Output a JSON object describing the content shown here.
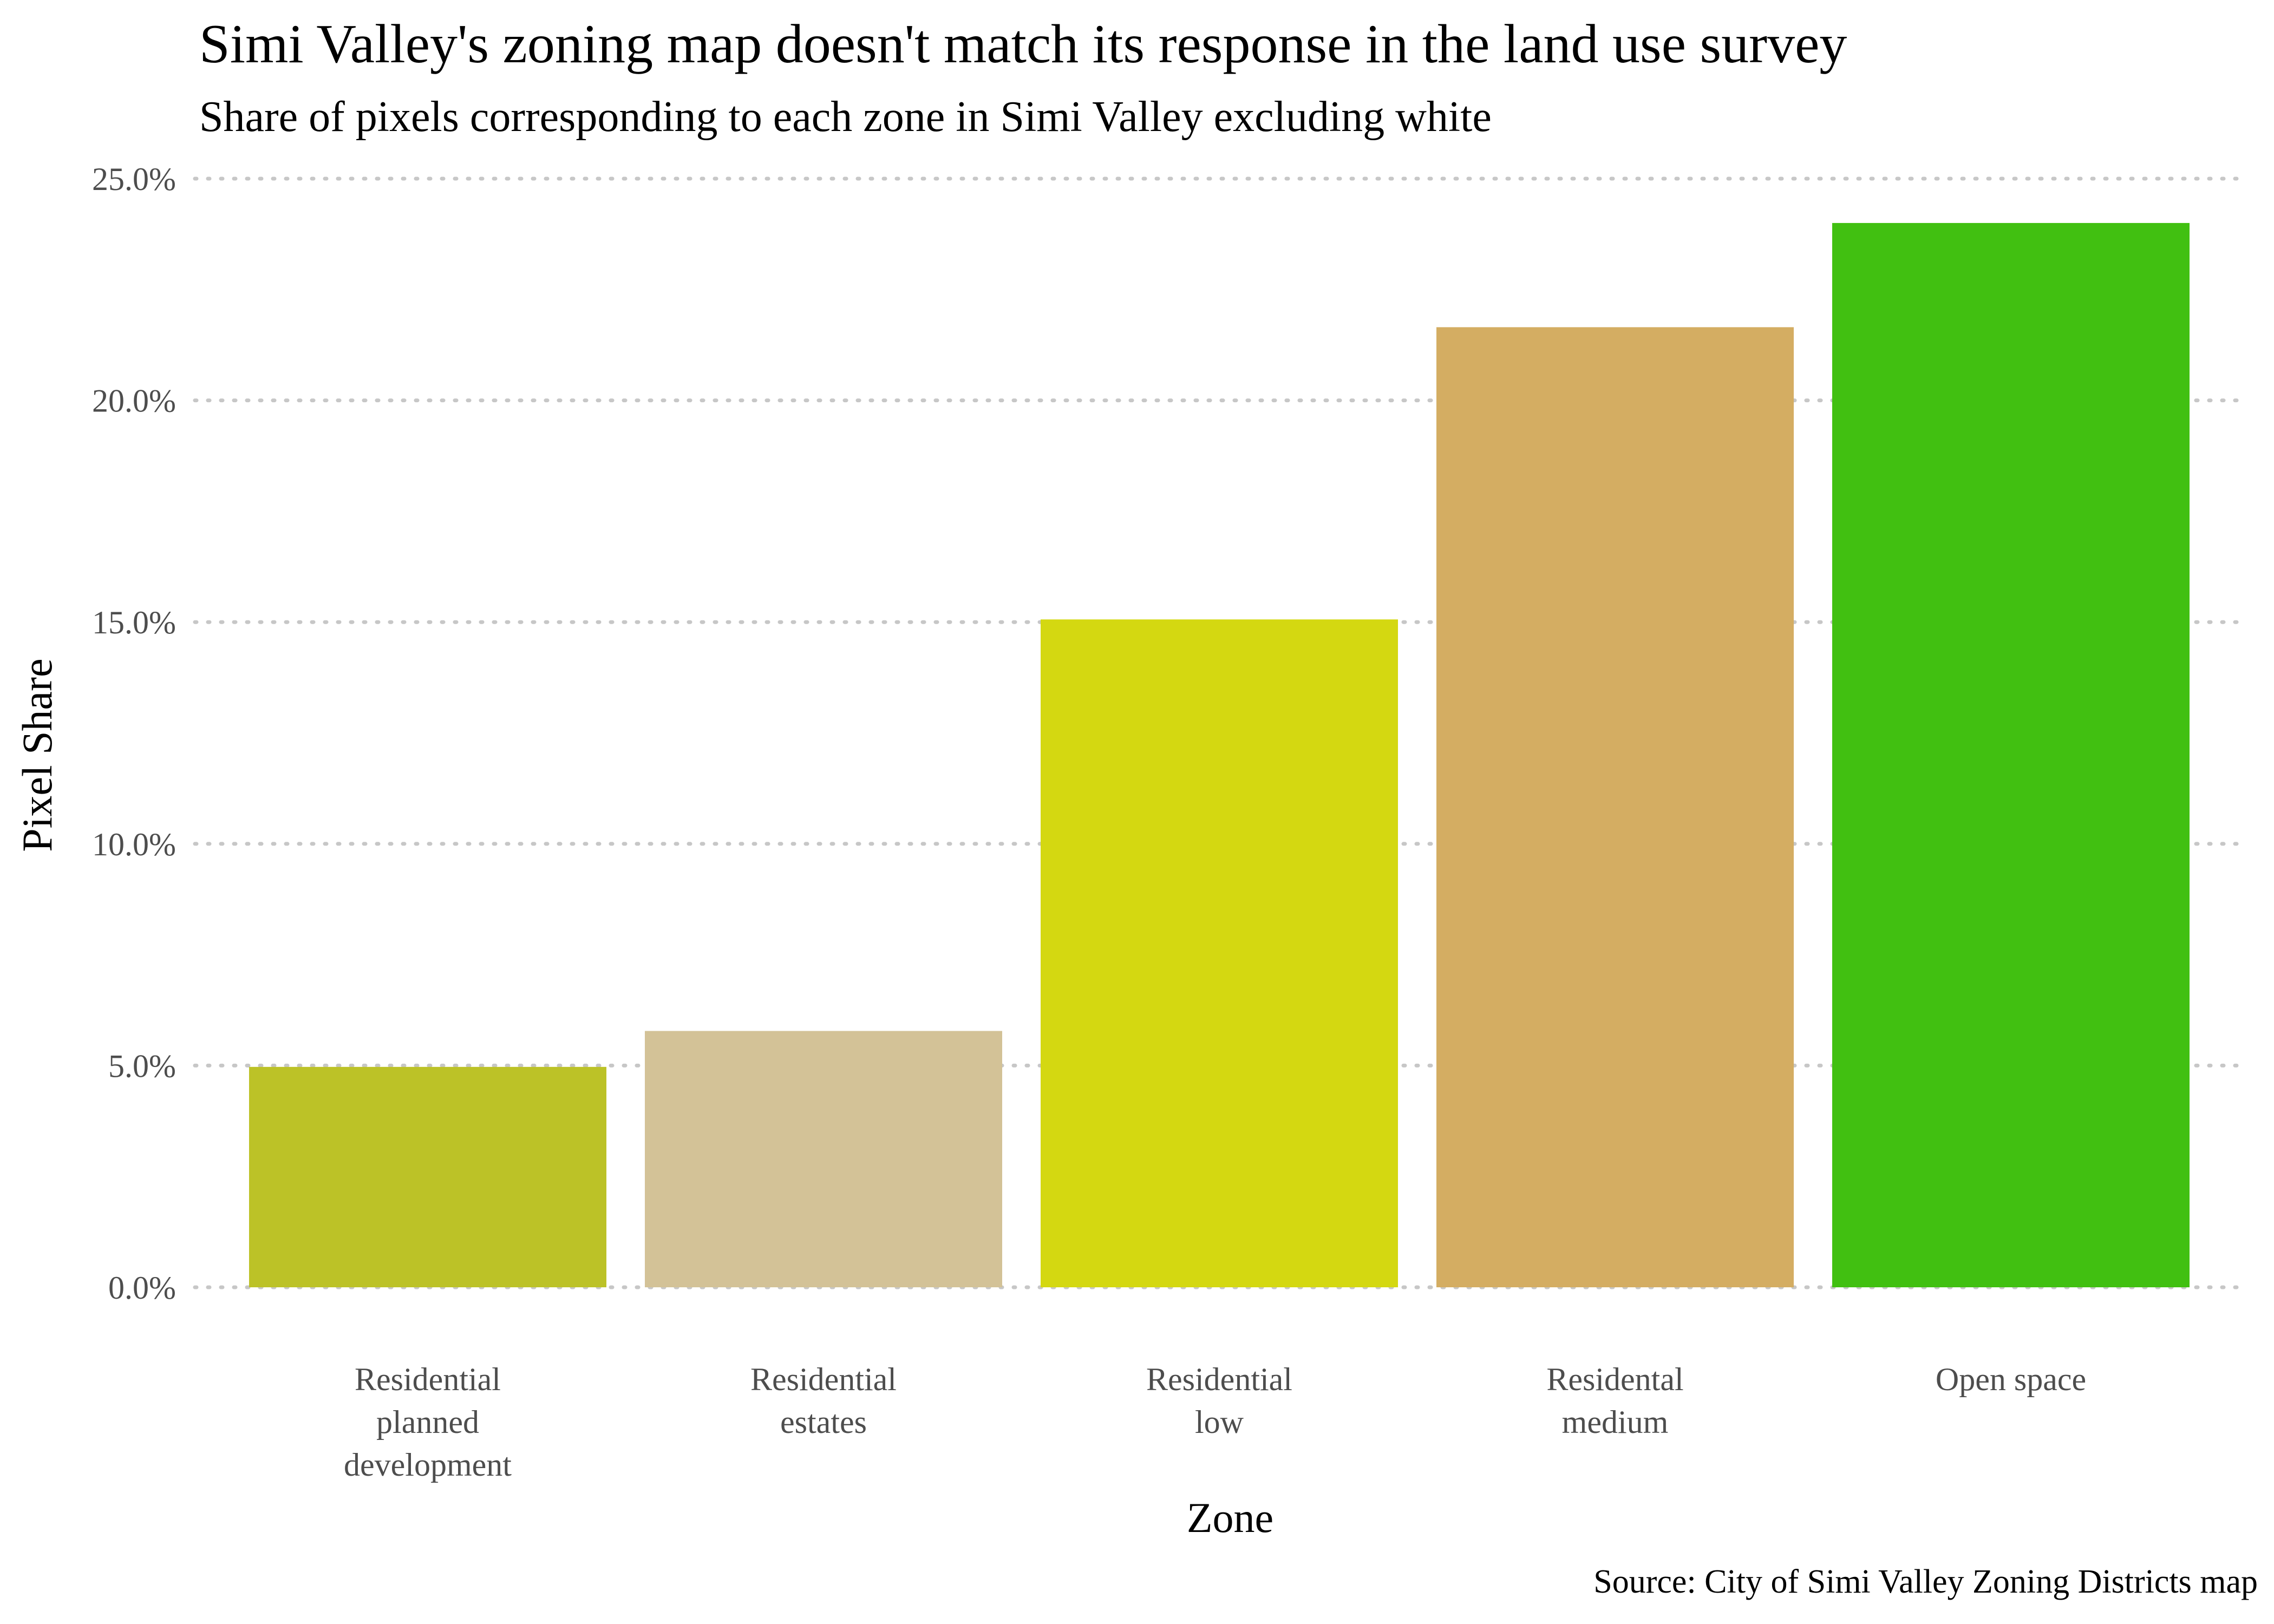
{
  "chart_data": {
    "type": "bar",
    "title": "Simi Valley's zoning map doesn't match its response in the land use survey",
    "subtitle": "Share of pixels corresponding to each zone in Simi Valley excluding white",
    "xlabel": "Zone",
    "ylabel": "Pixel Share",
    "caption": "Source: City of Simi Valley Zoning Districts map",
    "categories": [
      [
        "Residential",
        "planned",
        "development"
      ],
      [
        "Residential",
        "estates"
      ],
      [
        "Residential",
        "low"
      ],
      [
        "Residental",
        "medium"
      ],
      [
        "Open space"
      ]
    ],
    "values": [
      0.0497,
      0.0578,
      0.1506,
      0.2165,
      0.24
    ],
    "colors": [
      "#bcc227",
      "#d3c297",
      "#d4d811",
      "#d4ad62",
      "#41c011"
    ],
    "ylim": [
      0,
      0.25
    ],
    "yticks": [
      0,
      0.05,
      0.1,
      0.15,
      0.2,
      0.25
    ],
    "ytick_labels": [
      "0.0%",
      "5.0%",
      "10.0%",
      "15.0%",
      "20.0%",
      "25.0%"
    ],
    "grid": "horizontal dotted",
    "legend": "none"
  }
}
